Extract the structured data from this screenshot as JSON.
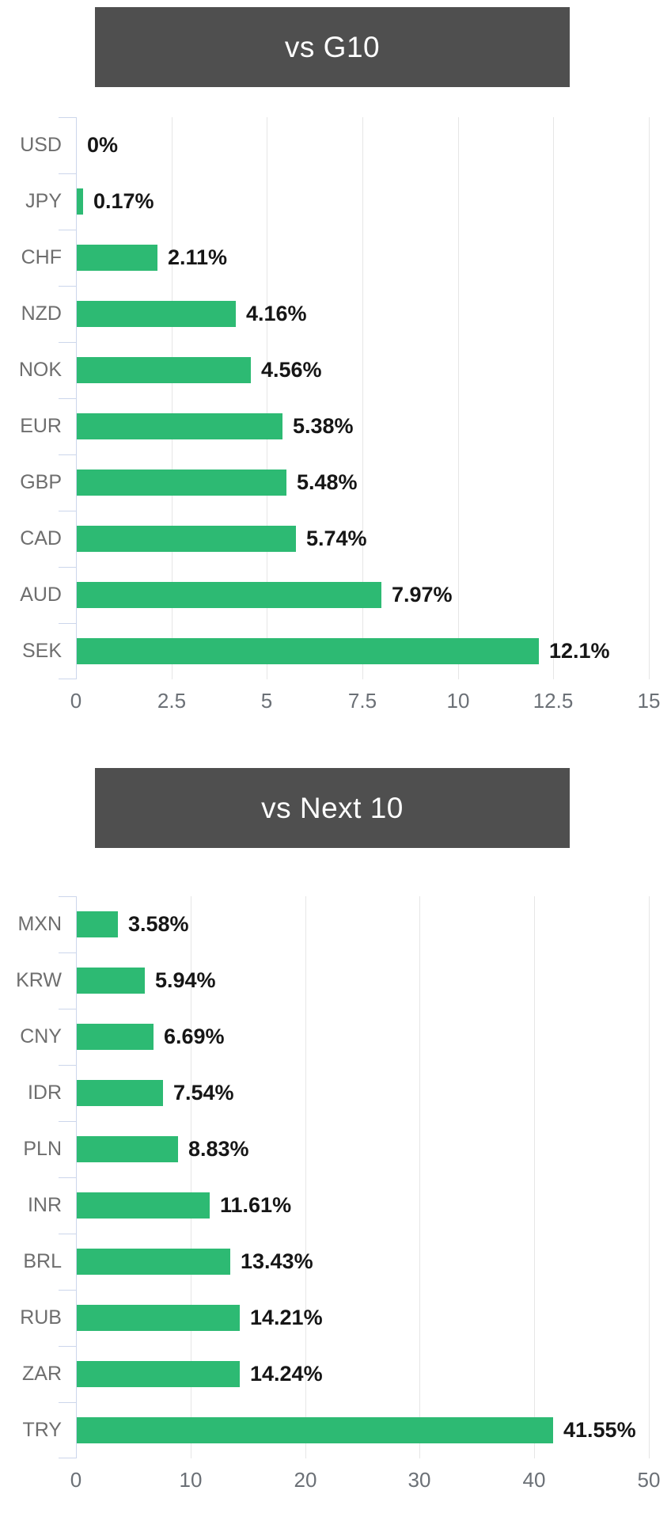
{
  "colors": {
    "bar": "#2dba73",
    "header_bg": "#4f4f4f",
    "header_text": "#ffffff",
    "gridline": "#e6e6e6",
    "axis_line": "#ccd6eb",
    "category_label": "#6e6e6e",
    "tick_label": "#6b7076",
    "value_label": "#161616",
    "page_bg": "#ffffff"
  },
  "chart_data": [
    {
      "type": "bar",
      "orientation": "horizontal",
      "title": "vs G10",
      "categories": [
        "USD",
        "JPY",
        "CHF",
        "NZD",
        "NOK",
        "EUR",
        "GBP",
        "CAD",
        "AUD",
        "SEK"
      ],
      "values": [
        0,
        0.17,
        2.11,
        4.16,
        4.56,
        5.38,
        5.48,
        5.74,
        7.97,
        12.1
      ],
      "value_labels": [
        "0%",
        "0.17%",
        "2.11%",
        "4.16%",
        "4.56%",
        "5.38%",
        "5.48%",
        "5.74%",
        "7.97%",
        "12.1%"
      ],
      "xlabel": "",
      "ylabel": "",
      "xlim": [
        0,
        15
      ],
      "xticks": [
        0,
        2.5,
        5,
        7.5,
        10,
        12.5,
        15
      ],
      "xtick_labels": [
        "0",
        "2.5",
        "5",
        "7.5",
        "10",
        "12.5",
        "15"
      ],
      "grid": true,
      "legend": "none"
    },
    {
      "type": "bar",
      "orientation": "horizontal",
      "title": "vs Next 10",
      "categories": [
        "MXN",
        "KRW",
        "CNY",
        "IDR",
        "PLN",
        "INR",
        "BRL",
        "RUB",
        "ZAR",
        "TRY"
      ],
      "values": [
        3.58,
        5.94,
        6.69,
        7.54,
        8.83,
        11.61,
        13.43,
        14.21,
        14.24,
        41.55
      ],
      "value_labels": [
        "3.58%",
        "5.94%",
        "6.69%",
        "7.54%",
        "8.83%",
        "11.61%",
        "13.43%",
        "14.21%",
        "14.24%",
        "41.55%"
      ],
      "xlabel": "",
      "ylabel": "",
      "xlim": [
        0,
        50
      ],
      "xticks": [
        0,
        10,
        20,
        30,
        40,
        50
      ],
      "xtick_labels": [
        "0",
        "10",
        "20",
        "30",
        "40",
        "50"
      ],
      "grid": true,
      "legend": "none"
    }
  ]
}
